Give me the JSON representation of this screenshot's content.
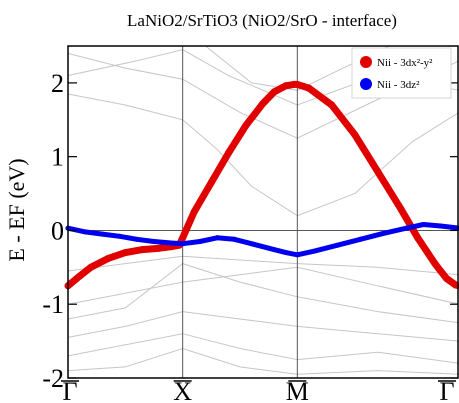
{
  "chart_data": {
    "type": "line",
    "title": "LaNiO2/SrTiO3 (NiO2/SrO - interface)",
    "ylabel": "E - EF (eV)",
    "xlabel": "",
    "ylim": [
      -2,
      2.5
    ],
    "x_ticks": [
      {
        "label": "Γ",
        "pos": 0
      },
      {
        "label": "X",
        "pos": 1
      },
      {
        "label": "M",
        "pos": 2
      },
      {
        "label": "Γ",
        "pos": 3.41
      }
    ],
    "y_ticks": [
      -2,
      -1,
      0,
      1,
      2
    ],
    "grid": false,
    "fermi_level": 0,
    "legend": {
      "placement": "top-right",
      "entries": [
        {
          "label": "Nii - 3dx²-y²",
          "color": "#e00000"
        },
        {
          "label": "Nii - 3dz²",
          "color": "#0000ee"
        }
      ]
    },
    "series": [
      {
        "name": "Nii - 3dx²-y²",
        "color": "#e00000",
        "kind": "fat-band",
        "x": [
          0,
          0.1,
          0.2,
          0.35,
          0.5,
          0.65,
          0.8,
          0.9,
          0.97,
          1.0,
          1.1,
          1.25,
          1.4,
          1.55,
          1.7,
          1.8,
          1.9,
          1.97,
          2.0,
          2.1,
          2.3,
          2.5,
          2.7,
          2.9,
          3.05,
          3.2,
          3.3,
          3.38,
          3.41
        ],
        "y": [
          -0.75,
          -0.62,
          -0.5,
          -0.38,
          -0.3,
          -0.26,
          -0.24,
          -0.22,
          -0.2,
          -0.1,
          0.25,
          0.65,
          1.05,
          1.42,
          1.72,
          1.88,
          1.96,
          1.98,
          1.98,
          1.93,
          1.7,
          1.3,
          0.8,
          0.3,
          -0.1,
          -0.45,
          -0.65,
          -0.74,
          -0.75
        ]
      },
      {
        "name": "Nii - 3dz²",
        "color": "#0000ee",
        "kind": "fat-band",
        "x": [
          0,
          0.15,
          0.3,
          0.45,
          0.6,
          0.75,
          0.9,
          1.0,
          1.15,
          1.3,
          1.45,
          1.6,
          1.75,
          1.9,
          2.0,
          2.15,
          2.35,
          2.55,
          2.75,
          2.95,
          3.1,
          3.25,
          3.41
        ],
        "y": [
          0.03,
          -0.02,
          -0.05,
          -0.08,
          -0.12,
          -0.15,
          -0.17,
          -0.18,
          -0.15,
          -0.1,
          -0.12,
          -0.18,
          -0.24,
          -0.3,
          -0.33,
          -0.28,
          -0.2,
          -0.12,
          -0.04,
          0.03,
          0.08,
          0.06,
          0.03
        ]
      }
    ]
  }
}
